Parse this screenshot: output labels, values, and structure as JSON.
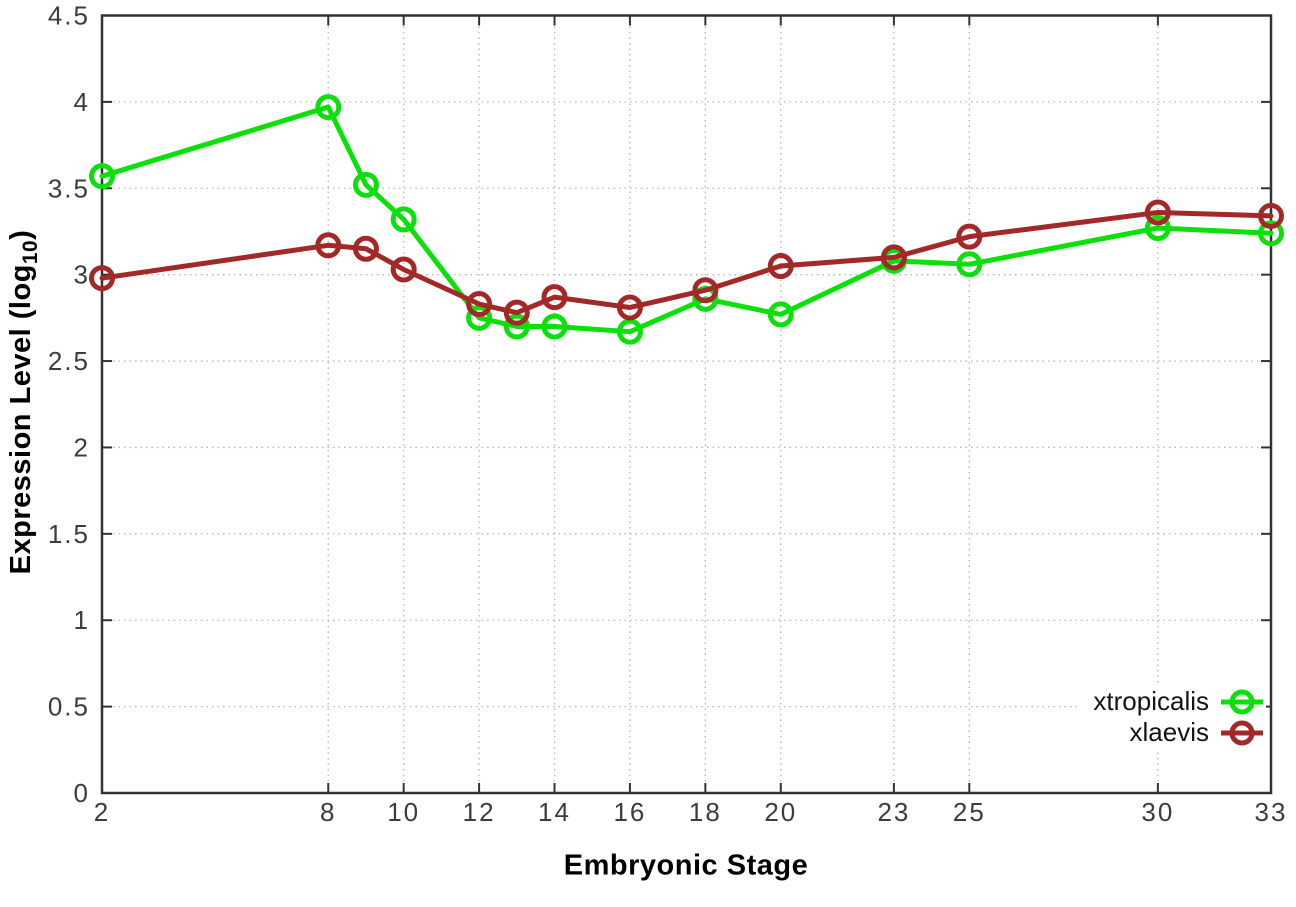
{
  "chart_data": {
    "type": "line",
    "title": "",
    "xlabel": "Embryonic Stage",
    "ylabel": "Expression Level (log10)",
    "ylabel_parts": {
      "base": "Expression Level (log",
      "sub": "10",
      "close": ")"
    },
    "xlim": [
      2,
      33
    ],
    "ylim": [
      0,
      4.5
    ],
    "x_ticks": [
      2,
      8,
      10,
      12,
      14,
      16,
      18,
      20,
      23,
      25,
      30,
      33
    ],
    "y_ticks": [
      0,
      0.5,
      1,
      1.5,
      2,
      2.5,
      3,
      3.5,
      4,
      4.5
    ],
    "grid": true,
    "legend_position": "bottom-right",
    "marker": "open-circle",
    "x": [
      2,
      8,
      9,
      10,
      12,
      13,
      14,
      16,
      18,
      20,
      23,
      25,
      30,
      33
    ],
    "series": [
      {
        "name": "xtropicalis",
        "color": "#0be00b",
        "values": [
          3.57,
          3.97,
          3.52,
          3.32,
          2.75,
          2.7,
          2.7,
          2.67,
          2.86,
          2.77,
          3.08,
          3.06,
          3.27,
          3.24
        ]
      },
      {
        "name": "xlaevis",
        "color": "#a32929",
        "values": [
          2.98,
          3.17,
          3.15,
          3.03,
          2.83,
          2.78,
          2.87,
          2.81,
          2.91,
          3.05,
          3.1,
          3.22,
          3.36,
          3.34
        ]
      }
    ],
    "colors": {
      "background": "#ffffff",
      "border": "#333333",
      "grid": "#b6b6b6",
      "tick_label": "#3c3c3c",
      "axis_label": "#000000",
      "legend_text": "#141414"
    }
  }
}
